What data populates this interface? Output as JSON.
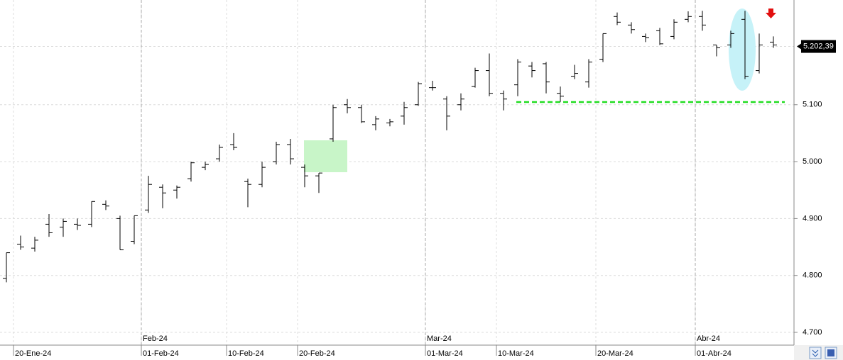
{
  "chart_data": {
    "type": "ohlc",
    "categories": [
      null,
      "20-Ene-24",
      null,
      null,
      null,
      null,
      null,
      null,
      null,
      null,
      "01-Feb-24",
      null,
      null,
      null,
      null,
      null,
      "10-Feb-24",
      null,
      null,
      null,
      null,
      "20-Feb-24",
      null,
      null,
      null,
      null,
      null,
      null,
      null,
      null,
      "01-Mar-24",
      null,
      null,
      null,
      null,
      "10-Mar-24",
      null,
      null,
      null,
      null,
      null,
      null,
      "20-Mar-24",
      null,
      null,
      null,
      null,
      null,
      null,
      "01-Abr-24",
      null,
      null,
      null,
      null,
      null
    ],
    "month_categories": [
      null,
      null,
      null,
      null,
      null,
      null,
      null,
      null,
      null,
      null,
      "Feb-24",
      null,
      null,
      null,
      null,
      null,
      null,
      null,
      null,
      null,
      null,
      null,
      null,
      null,
      null,
      null,
      null,
      null,
      null,
      null,
      "Mar-24",
      null,
      null,
      null,
      null,
      null,
      null,
      null,
      null,
      null,
      null,
      null,
      null,
      null,
      null,
      null,
      null,
      null,
      null,
      "Abr-24",
      null,
      null,
      null,
      null,
      null
    ],
    "color": "#000000",
    "open": [
      4795,
      4855,
      4848,
      4890,
      4885,
      4890,
      4890,
      4925,
      4900,
      4860,
      4915,
      4955,
      4950,
      4970,
      4990,
      5005,
      5030,
      4965,
      4960,
      5000,
      5030,
      4990,
      4975,
      5040,
      5100,
      5095,
      5065,
      5068,
      5080,
      5100,
      5130,
      5110,
      5100,
      5132,
      5160,
      5120,
      5135,
      5168,
      5172,
      5120,
      5150,
      5140,
      5180,
      5255,
      5240,
      5220,
      5230,
      5220,
      5250,
      5255,
      5205,
      5205,
      5250,
      5160,
      5210
    ],
    "high": [
      4840,
      4870,
      4868,
      4908,
      4900,
      4900,
      4930,
      4932,
      4905,
      4905,
      4975,
      4960,
      4958,
      5000,
      5000,
      5030,
      5050,
      4970,
      5000,
      5035,
      5040,
      4995,
      4980,
      5100,
      5110,
      5100,
      5080,
      5075,
      5105,
      5140,
      5142,
      5115,
      5120,
      5165,
      5190,
      5125,
      5180,
      5175,
      5175,
      5132,
      5170,
      5180,
      5225,
      5262,
      5245,
      5225,
      5235,
      5250,
      5264,
      5265,
      5205,
      5230,
      5265,
      5225,
      5220
    ],
    "low": [
      4788,
      4845,
      4842,
      4868,
      4868,
      4880,
      4885,
      4915,
      4845,
      4855,
      4910,
      4918,
      4935,
      4965,
      4985,
      5000,
      5020,
      4920,
      4955,
      4995,
      4995,
      4955,
      4945,
      5035,
      5085,
      5068,
      5055,
      5062,
      5065,
      5098,
      5125,
      5055,
      5090,
      5130,
      5115,
      5090,
      5115,
      5148,
      5120,
      5105,
      5145,
      5130,
      5175,
      5240,
      5225,
      5210,
      5205,
      5215,
      5245,
      5230,
      5185,
      5200,
      5145,
      5155,
      5200
    ],
    "close": [
      4840,
      4850,
      4862,
      4875,
      4895,
      4888,
      4930,
      4922,
      4845,
      4905,
      4960,
      4945,
      4955,
      4998,
      4995,
      5025,
      5025,
      4960,
      4990,
      5030,
      5005,
      4975,
      4980,
      5095,
      5095,
      5070,
      5075,
      5070,
      5095,
      5137,
      5130,
      5080,
      5110,
      5160,
      5120,
      5110,
      5175,
      5160,
      5140,
      5115,
      5155,
      5175,
      5225,
      5245,
      5232,
      5218,
      5207,
      5245,
      5255,
      5240,
      5200,
      5225,
      5150,
      5205,
      5205
    ],
    "ylim": [
      4677.6,
      5284
    ],
    "yticks": [
      {
        "value": 4700,
        "label": "4.700"
      },
      {
        "value": 4800,
        "label": "4.800"
      },
      {
        "value": 4900,
        "label": "4.900"
      },
      {
        "value": 5000,
        "label": "5.000"
      },
      {
        "value": 5100,
        "label": "5.100"
      }
    ],
    "last_price": {
      "value": 5202.39,
      "label": "5.202,39"
    },
    "grid": true
  }
}
